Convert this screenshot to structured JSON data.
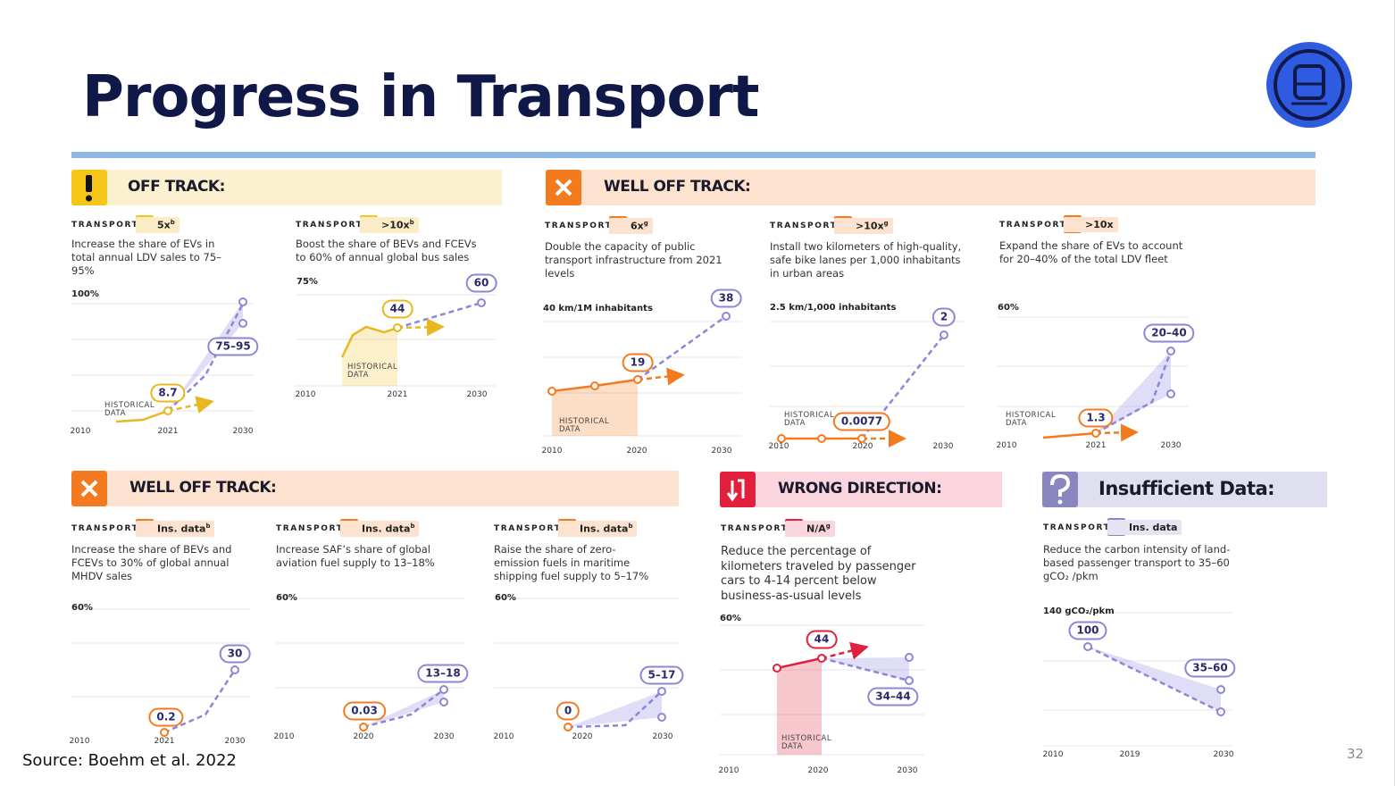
{
  "title": "Progress in Transport",
  "source": "Source: Boehm et al. 2022",
  "page_number": "32",
  "sections": [
    {
      "status": "OFF TRACK:",
      "panels": [
        {
          "tag": "TRANSPORT",
          "badge": "5x",
          "badge_sup": "b",
          "text": "Increase the share of EVs in total annual LDV sales to 75–95%",
          "axis_label": "100%",
          "x_labels": [
            "2010",
            "2021",
            "2030"
          ],
          "historical": "HISTORICAL DATA",
          "callouts": [
            "8.7",
            "75–95"
          ]
        },
        {
          "tag": "TRANSPORT",
          "badge": ">10x",
          "badge_sup": "b",
          "text": "Boost the share of BEVs and FCEVs to 60% of annual global bus sales",
          "axis_label": "75%",
          "x_labels": [
            "2010",
            "2021",
            "2030"
          ],
          "historical": "HISTORICAL DATA",
          "callouts": [
            "44",
            "60"
          ]
        }
      ]
    },
    {
      "status": "WELL OFF TRACK:",
      "panels": [
        {
          "tag": "TRANSPORT",
          "badge": "6x",
          "badge_sup": "g",
          "text": "Double the capacity of public transport infrastructure from 2021 levels",
          "axis_label": "40 km/1M inhabitants",
          "x_labels": [
            "2010",
            "2020",
            "2030"
          ],
          "historical": "HISTORICAL DATA",
          "callouts": [
            "19",
            "38"
          ]
        },
        {
          "tag": "TRANSPORT",
          "badge": ">10x",
          "badge_sup": "g",
          "text": "Install two kilometers of high-quality, safe bike lanes per 1,000 inhabitants in urban areas",
          "axis_label": "2.5 km/1,000 inhabitants",
          "x_labels": [
            "2010",
            "2020",
            "2030"
          ],
          "historical": "HISTORICAL DATA",
          "callouts": [
            "0.0077",
            "2"
          ]
        },
        {
          "tag": "TRANSPORT",
          "badge": ">10x",
          "text": "Expand the share of EVs to account for 20–40% of the total LDV fleet",
          "axis_label": "60%",
          "x_labels": [
            "2010",
            "2021",
            "2030"
          ],
          "historical": "HISTORICAL DATA",
          "callouts": [
            "1.3",
            "20–40"
          ]
        }
      ]
    },
    {
      "status": "WELL OFF TRACK:",
      "panels": [
        {
          "tag": "TRANSPORT",
          "badge": "Ins. data",
          "badge_sup": "b",
          "text": "Increase the share of BEVs and FCEVs to 30% of global annual MHDV sales",
          "axis_label": "60%",
          "x_labels": [
            "2010",
            "2021",
            "2030"
          ],
          "callouts": [
            "0.2",
            "30"
          ]
        },
        {
          "tag": "TRANSPORT",
          "badge": "Ins. data",
          "badge_sup": "b",
          "text": "Increase SAF’s share of global aviation fuel supply to 13–18%",
          "axis_label": "60%",
          "x_labels": [
            "2010",
            "2020",
            "2030"
          ],
          "callouts": [
            "0.03",
            "13–18"
          ]
        },
        {
          "tag": "TRANSPORT",
          "badge": "Ins. data",
          "badge_sup": "b",
          "text": "Raise the share of zero-emission fuels in maritime shipping fuel supply to 5–17%",
          "axis_label": "60%",
          "x_labels": [
            "2010",
            "2020",
            "2030"
          ],
          "callouts": [
            "0",
            "5–17"
          ]
        }
      ]
    },
    {
      "status": "WRONG DIRECTION:",
      "panels": [
        {
          "tag": "TRANSPORT",
          "badge": "N/A",
          "badge_sup": "g",
          "text": "Reduce the percentage of kilometers traveled by passenger cars to 4-14 percent below business-as-usual levels",
          "axis_label": "60%",
          "x_labels": [
            "2010",
            "2020",
            "2030"
          ],
          "historical": "HISTORICAL DATA",
          "callouts": [
            "44",
            "34–44"
          ]
        }
      ]
    },
    {
      "status": "Insufficient Data:",
      "panels": [
        {
          "tag": "TRANSPORT",
          "badge": "Ins. data",
          "text": "Reduce the carbon intensity of land-based passenger transport to 35–60 gCO₂ /pkm",
          "axis_label": "140 gCO₂/pkm",
          "x_labels": [
            "2010",
            "2019",
            "2030"
          ],
          "callouts": [
            "100",
            "35–60"
          ]
        }
      ]
    }
  ]
}
